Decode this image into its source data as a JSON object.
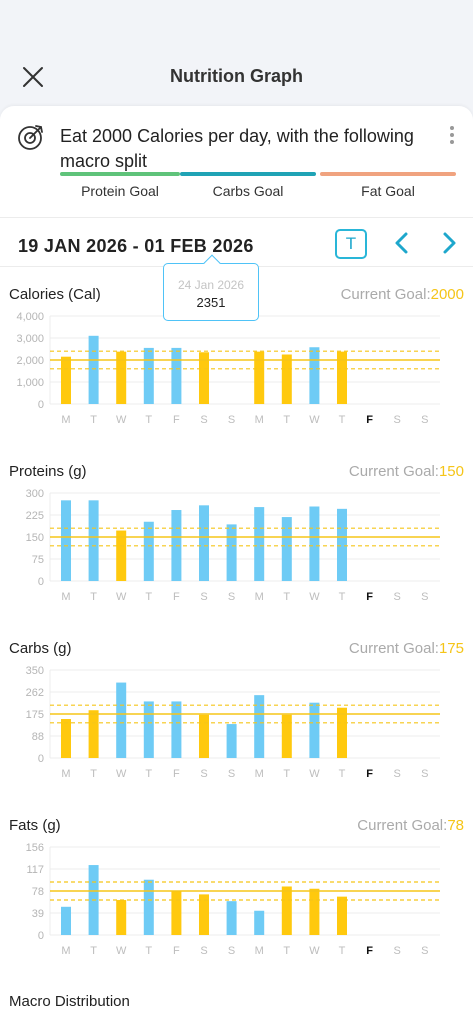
{
  "header": {
    "title": "Nutrition Graph"
  },
  "goal": {
    "text": "Eat 2000 Calories per day, with the following macro split",
    "macros": [
      {
        "label": "Protein Goal",
        "color": "#5fc37a"
      },
      {
        "label": "Carbs Goal",
        "color": "#1fa3b5"
      },
      {
        "label": "Fat Goal",
        "color": "#f0a37f"
      }
    ]
  },
  "date_range": "19 JAN 2026 - 01 FEB 2026",
  "today_label": "T",
  "tooltip": {
    "date": "24 Jan 2026",
    "value": "2351"
  },
  "colors": {
    "under": "#ffc90e",
    "over": "#6ecbf5",
    "goal_line": "#f5c518",
    "accent": "#29b6d8"
  },
  "chart_data": [
    {
      "type": "bar",
      "title": "Calories (Cal)",
      "goal_label": "Current Goal:",
      "goal": 2000,
      "goal_display": "2000",
      "band": [
        1600,
        2400
      ],
      "ylim": [
        0,
        4000
      ],
      "yticks": [
        "4,000",
        "3,000",
        "2,000",
        "1,000",
        "0"
      ],
      "categories": [
        "M",
        "T",
        "W",
        "T",
        "F",
        "S",
        "S",
        "M",
        "T",
        "W",
        "T",
        "F",
        "S",
        "S"
      ],
      "values": [
        2150,
        3100,
        2380,
        2550,
        2550,
        2351,
        null,
        2380,
        2250,
        2580,
        2380,
        null,
        null,
        null
      ],
      "highlight_index": 11
    },
    {
      "type": "bar",
      "title": "Proteins (g)",
      "goal_label": "Current Goal:",
      "goal": 150,
      "goal_display": "150",
      "band": [
        120,
        180
      ],
      "ylim": [
        0,
        300
      ],
      "yticks": [
        "300",
        "225",
        "150",
        "75",
        "0"
      ],
      "categories": [
        "M",
        "T",
        "W",
        "T",
        "F",
        "S",
        "S",
        "M",
        "T",
        "W",
        "T",
        "F",
        "S",
        "S"
      ],
      "values": [
        275,
        275,
        172,
        202,
        242,
        258,
        193,
        252,
        218,
        254,
        246,
        null,
        null,
        null
      ],
      "highlight_index": 11
    },
    {
      "type": "bar",
      "title": "Carbs (g)",
      "goal_label": "Current Goal:",
      "goal": 175,
      "goal_display": "175",
      "band": [
        140,
        210
      ],
      "ylim": [
        0,
        350
      ],
      "yticks": [
        "350",
        "262",
        "175",
        "88",
        "0"
      ],
      "categories": [
        "M",
        "T",
        "W",
        "T",
        "F",
        "S",
        "S",
        "M",
        "T",
        "W",
        "T",
        "F",
        "S",
        "S"
      ],
      "values": [
        155,
        190,
        300,
        225,
        225,
        172,
        135,
        250,
        172,
        220,
        200,
        null,
        null,
        null
      ],
      "highlight_index": 11
    },
    {
      "type": "bar",
      "title": "Fats (g)",
      "goal_label": "Current Goal:",
      "goal": 78,
      "goal_display": "78",
      "band": [
        62,
        94
      ],
      "ylim": [
        0,
        156
      ],
      "yticks": [
        "156",
        "117",
        "78",
        "39",
        "0"
      ],
      "categories": [
        "M",
        "T",
        "W",
        "T",
        "F",
        "S",
        "S",
        "M",
        "T",
        "W",
        "T",
        "F",
        "S",
        "S"
      ],
      "values": [
        50,
        124,
        62,
        98,
        78,
        72,
        60,
        43,
        86,
        82,
        68,
        null,
        null,
        null
      ],
      "highlight_index": 11
    }
  ],
  "macro_distribution_title": "Macro Distribution"
}
